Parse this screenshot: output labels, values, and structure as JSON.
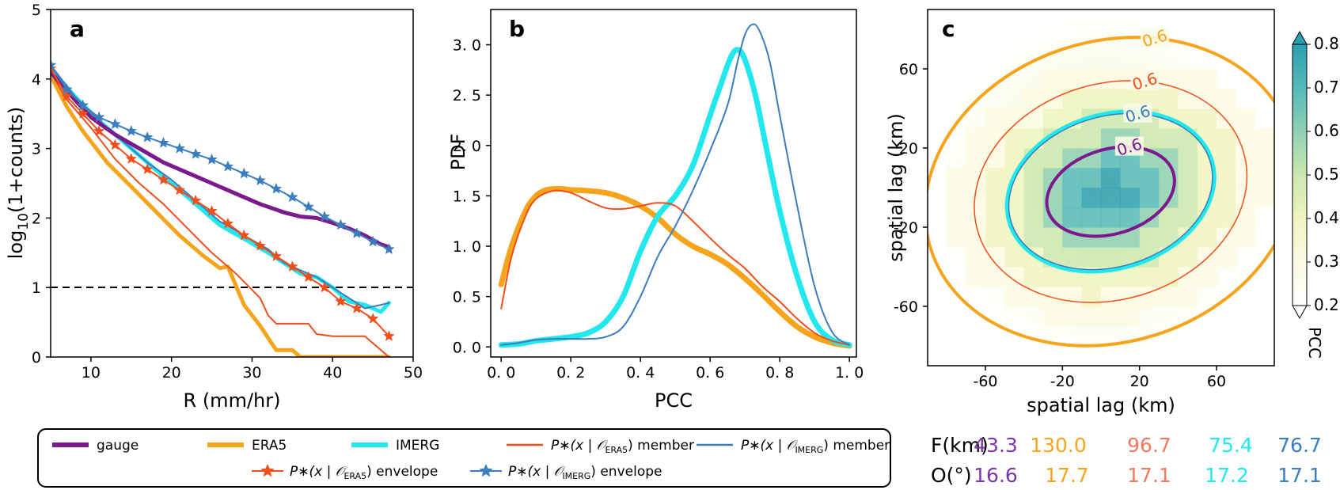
{
  "chart_data": [
    {
      "panel_label": "a",
      "type": "line",
      "xlabel": "R (mm/hr)",
      "ylabel": "log10(1+counts)",
      "xlim": [
        5,
        50
      ],
      "ylim": [
        0,
        5
      ],
      "xticks": [
        "10",
        "20",
        "30",
        "40",
        "50"
      ],
      "yticks": [
        "0",
        "1",
        "2",
        "3",
        "4",
        "5"
      ],
      "reference_line": {
        "y": 1,
        "style": "dashed",
        "color": "#000000"
      },
      "series": [
        {
          "name": "gauge",
          "color": "#7b1a8c",
          "width": 5,
          "marker": "none",
          "x": [
            5,
            8,
            10,
            13,
            16,
            19,
            22,
            25,
            28,
            31,
            34,
            36,
            38,
            40,
            42,
            44,
            46,
            47
          ],
          "y": [
            4.1,
            3.7,
            3.45,
            3.2,
            3.0,
            2.8,
            2.65,
            2.5,
            2.35,
            2.2,
            2.08,
            2.02,
            2.0,
            1.93,
            1.85,
            1.75,
            1.62,
            1.58
          ]
        },
        {
          "name": "ERA5",
          "color": "#f5a41c",
          "width": 5,
          "marker": "none",
          "x": [
            5,
            7,
            9,
            12,
            15,
            18,
            21,
            24,
            26,
            27,
            29,
            31,
            33,
            35,
            36,
            38,
            40,
            42,
            44,
            46,
            47
          ],
          "y": [
            4.05,
            3.6,
            3.25,
            2.8,
            2.45,
            2.1,
            1.75,
            1.45,
            1.28,
            1.3,
            0.75,
            0.45,
            0.1,
            0.1,
            0.0,
            0.0,
            0.0,
            0.0,
            0.0,
            0.0,
            0.0
          ]
        },
        {
          "name": "IMERG",
          "color": "#22e8ee",
          "width": 5,
          "marker": "none",
          "x": [
            5,
            8,
            11,
            14,
            17,
            20,
            23,
            26,
            29,
            32,
            34,
            36,
            38,
            40,
            42,
            44,
            46,
            47
          ],
          "y": [
            4.15,
            3.75,
            3.4,
            3.1,
            2.8,
            2.5,
            2.2,
            1.9,
            1.7,
            1.5,
            1.35,
            1.2,
            1.15,
            1.0,
            0.8,
            0.75,
            0.65,
            0.78
          ]
        },
        {
          "name": "P*(x | O_ERA5) member",
          "color": "#f04f1c",
          "width": 2,
          "marker": "none",
          "x": [
            5,
            7,
            10,
            13,
            16,
            19,
            22,
            25,
            28,
            31,
            32,
            33,
            36,
            37,
            38,
            40,
            42,
            44,
            46,
            47
          ],
          "y": [
            4.1,
            3.7,
            3.3,
            2.85,
            2.5,
            2.2,
            1.85,
            1.5,
            1.2,
            0.85,
            0.6,
            0.48,
            0.48,
            0.48,
            0.33,
            0.3,
            0.3,
            0.3,
            0.1,
            0.0
          ]
        },
        {
          "name": "P*(x | O_IMERG) member",
          "color": "#3b7dbd",
          "width": 2,
          "marker": "none",
          "x": [
            5,
            8,
            11,
            14,
            17,
            20,
            23,
            26,
            29,
            32,
            34,
            36,
            38,
            40,
            42,
            44,
            46,
            47
          ],
          "y": [
            4.2,
            3.75,
            3.4,
            3.1,
            2.8,
            2.55,
            2.25,
            1.95,
            1.75,
            1.55,
            1.35,
            1.25,
            1.15,
            1.0,
            0.85,
            0.7,
            0.75,
            0.78
          ]
        },
        {
          "name": "P*(x | O_ERA5) envelope",
          "color": "#f04f1c",
          "width": 2,
          "marker": "star",
          "x": [
            5,
            7,
            9,
            11,
            13,
            15,
            17,
            19,
            21,
            23,
            25,
            27,
            29,
            31,
            33,
            35,
            37,
            39,
            41,
            43,
            45,
            47
          ],
          "y": [
            4.15,
            3.75,
            3.5,
            3.25,
            3.05,
            2.85,
            2.7,
            2.55,
            2.4,
            2.25,
            2.1,
            1.92,
            1.75,
            1.6,
            1.45,
            1.3,
            1.15,
            1.0,
            0.8,
            0.7,
            0.55,
            0.3
          ]
        },
        {
          "name": "P*(x | O_IMERG) envelope",
          "color": "#3b7dbd",
          "width": 2,
          "marker": "star",
          "x": [
            5,
            7,
            9,
            11,
            13,
            15,
            17,
            19,
            21,
            23,
            25,
            27,
            29,
            31,
            33,
            35,
            37,
            39,
            41,
            43,
            45,
            47
          ],
          "y": [
            4.2,
            3.85,
            3.62,
            3.45,
            3.35,
            3.25,
            3.16,
            3.08,
            3.0,
            2.92,
            2.84,
            2.74,
            2.64,
            2.54,
            2.42,
            2.3,
            2.16,
            2.02,
            1.9,
            1.78,
            1.66,
            1.55
          ]
        }
      ]
    },
    {
      "panel_label": "b",
      "type": "line",
      "xlabel": "PCC",
      "ylabel": "PDF",
      "xlim": [
        -0.03,
        1.02
      ],
      "ylim": [
        -0.1,
        3.35
      ],
      "xticks": [
        "0. 0",
        "0. 2",
        "0. 4",
        "0. 6",
        "0. 8",
        "1. 0"
      ],
      "yticks": [
        "0. 0",
        "0. 5",
        "1. 0",
        "1. 5",
        "2. 0",
        "2. 5",
        "3. 0"
      ],
      "series": [
        {
          "name": "ERA5",
          "color": "#f5a41c",
          "width": 7,
          "x": [
            0.0,
            0.03,
            0.07,
            0.1,
            0.13,
            0.17,
            0.2,
            0.25,
            0.3,
            0.35,
            0.4,
            0.45,
            0.5,
            0.55,
            0.6,
            0.65,
            0.7,
            0.75,
            0.8,
            0.85,
            0.9,
            0.95,
            1.0
          ],
          "y": [
            0.62,
            1.0,
            1.35,
            1.5,
            1.56,
            1.57,
            1.56,
            1.55,
            1.53,
            1.48,
            1.4,
            1.28,
            1.12,
            1.0,
            0.92,
            0.82,
            0.68,
            0.52,
            0.35,
            0.2,
            0.1,
            0.04,
            0.01
          ]
        },
        {
          "name": "IMERG",
          "color": "#22e8ee",
          "width": 7,
          "x": [
            0.0,
            0.05,
            0.1,
            0.15,
            0.2,
            0.25,
            0.3,
            0.35,
            0.4,
            0.45,
            0.5,
            0.55,
            0.6,
            0.63,
            0.66,
            0.68,
            0.7,
            0.73,
            0.76,
            0.8,
            0.85,
            0.9,
            0.95,
            1.0
          ],
          "y": [
            0.02,
            0.03,
            0.06,
            0.08,
            0.1,
            0.14,
            0.25,
            0.5,
            0.95,
            1.3,
            1.5,
            1.8,
            2.3,
            2.6,
            2.88,
            2.95,
            2.85,
            2.5,
            2.0,
            1.35,
            0.7,
            0.25,
            0.07,
            0.02
          ]
        },
        {
          "name": "P*(x | O_ERA5) member",
          "color": "#f04f1c",
          "width": 2,
          "x": [
            0.0,
            0.03,
            0.07,
            0.1,
            0.15,
            0.2,
            0.25,
            0.3,
            0.35,
            0.4,
            0.45,
            0.5,
            0.55,
            0.6,
            0.65,
            0.7,
            0.75,
            0.8,
            0.85,
            0.9,
            0.95,
            1.0
          ],
          "y": [
            0.38,
            0.9,
            1.3,
            1.47,
            1.55,
            1.53,
            1.45,
            1.38,
            1.37,
            1.4,
            1.43,
            1.4,
            1.25,
            1.08,
            0.92,
            0.78,
            0.6,
            0.45,
            0.28,
            0.14,
            0.06,
            0.02
          ]
        },
        {
          "name": "P*(x | O_IMERG) member",
          "color": "#3b7dbd",
          "width": 2,
          "x": [
            0.0,
            0.05,
            0.1,
            0.15,
            0.2,
            0.25,
            0.3,
            0.35,
            0.4,
            0.45,
            0.5,
            0.55,
            0.6,
            0.65,
            0.68,
            0.7,
            0.72,
            0.74,
            0.77,
            0.8,
            0.85,
            0.9,
            0.95,
            1.0
          ],
          "y": [
            0.02,
            0.04,
            0.07,
            0.08,
            0.08,
            0.08,
            0.1,
            0.2,
            0.5,
            0.9,
            1.2,
            1.55,
            1.95,
            2.4,
            2.85,
            3.1,
            3.2,
            3.15,
            2.85,
            2.3,
            1.4,
            0.6,
            0.15,
            0.02
          ]
        }
      ]
    },
    {
      "panel_label": "c",
      "type": "heatmap",
      "xlabel": "spatial lag (km)",
      "ylabel": "spatial lag (km)",
      "xlim": [
        -90,
        90
      ],
      "ylim": [
        -90,
        90
      ],
      "xticks": [
        "-60",
        "-20",
        "20",
        "60"
      ],
      "yticks": [
        "60",
        "20",
        "-20",
        "-60"
      ],
      "colorbar": {
        "label": "PCC",
        "ticks": [
          "0.2",
          "0.3",
          "0.4",
          "0.5",
          "0.6",
          "0.7",
          "0.8"
        ],
        "range": [
          0.2,
          0.8
        ],
        "colors": [
          "#ffffff",
          "#fbfbe4",
          "#f0f5c2",
          "#cbe8b0",
          "#8ed0b4",
          "#55bab9",
          "#2a9fb0"
        ]
      },
      "contours": [
        {
          "series": "gauge",
          "level_label": "0.6",
          "color": "#7b1a8c",
          "width": 4,
          "F_km": 43.3,
          "O_deg": 16.6
        },
        {
          "series": "ERA5",
          "level_label": "0.6",
          "color": "#f5a41c",
          "width": 4,
          "F_km": 130.0,
          "O_deg": 17.7
        },
        {
          "series": "P*(x | O_ERA5) member",
          "level_label": "0.6",
          "color": "#f04f1c",
          "width": 1.5,
          "F_km": 96.7,
          "O_deg": 17.1
        },
        {
          "series": "IMERG",
          "level_label": "",
          "color": "#22e8ee",
          "width": 5,
          "F_km": 75.4,
          "O_deg": 17.2
        },
        {
          "series": "P*(x | O_IMERG) member",
          "level_label": "0.6",
          "color": "#3b7dbd",
          "width": 1.5,
          "F_km": 76.7,
          "O_deg": 17.1
        }
      ]
    }
  ],
  "stats_table": {
    "f_label": "F(km)",
    "o_label": "O(°)",
    "f_values": [
      "43.3",
      "130.0",
      "96.7",
      "75.4",
      "76.7"
    ],
    "o_values": [
      "16.6",
      "17.7",
      "17.1",
      "17.2",
      "17.1"
    ],
    "colors": [
      "#7b36a8",
      "#f5a41c",
      "#f07a5e",
      "#22e8ee",
      "#3b7dbd"
    ]
  },
  "legend": {
    "row1": [
      {
        "label": "gauge",
        "color": "#7b1a8c",
        "style": "thick"
      },
      {
        "label": "ERA5",
        "color": "#f5a41c",
        "style": "thick"
      },
      {
        "label": "IMERG",
        "color": "#22e8ee",
        "style": "thick"
      },
      {
        "label": "member",
        "prefix": "P∗(x | 𝒪",
        "sub": "ERA5",
        "suffix": ")",
        "color": "#f04f1c",
        "style": "thin"
      },
      {
        "label": "member",
        "prefix": "P∗(x | 𝒪",
        "sub": "IMERG",
        "suffix": ")",
        "color": "#3b7dbd",
        "style": "thin"
      }
    ],
    "row2": [
      {
        "label": "envelope",
        "prefix": "P∗(x | 𝒪",
        "sub": "ERA5",
        "suffix": ")",
        "color": "#f04f1c",
        "style": "star"
      },
      {
        "label": "envelope",
        "prefix": "P∗(x | 𝒪",
        "sub": "IMERG",
        "suffix": ")",
        "color": "#3b7dbd",
        "style": "star"
      }
    ]
  }
}
